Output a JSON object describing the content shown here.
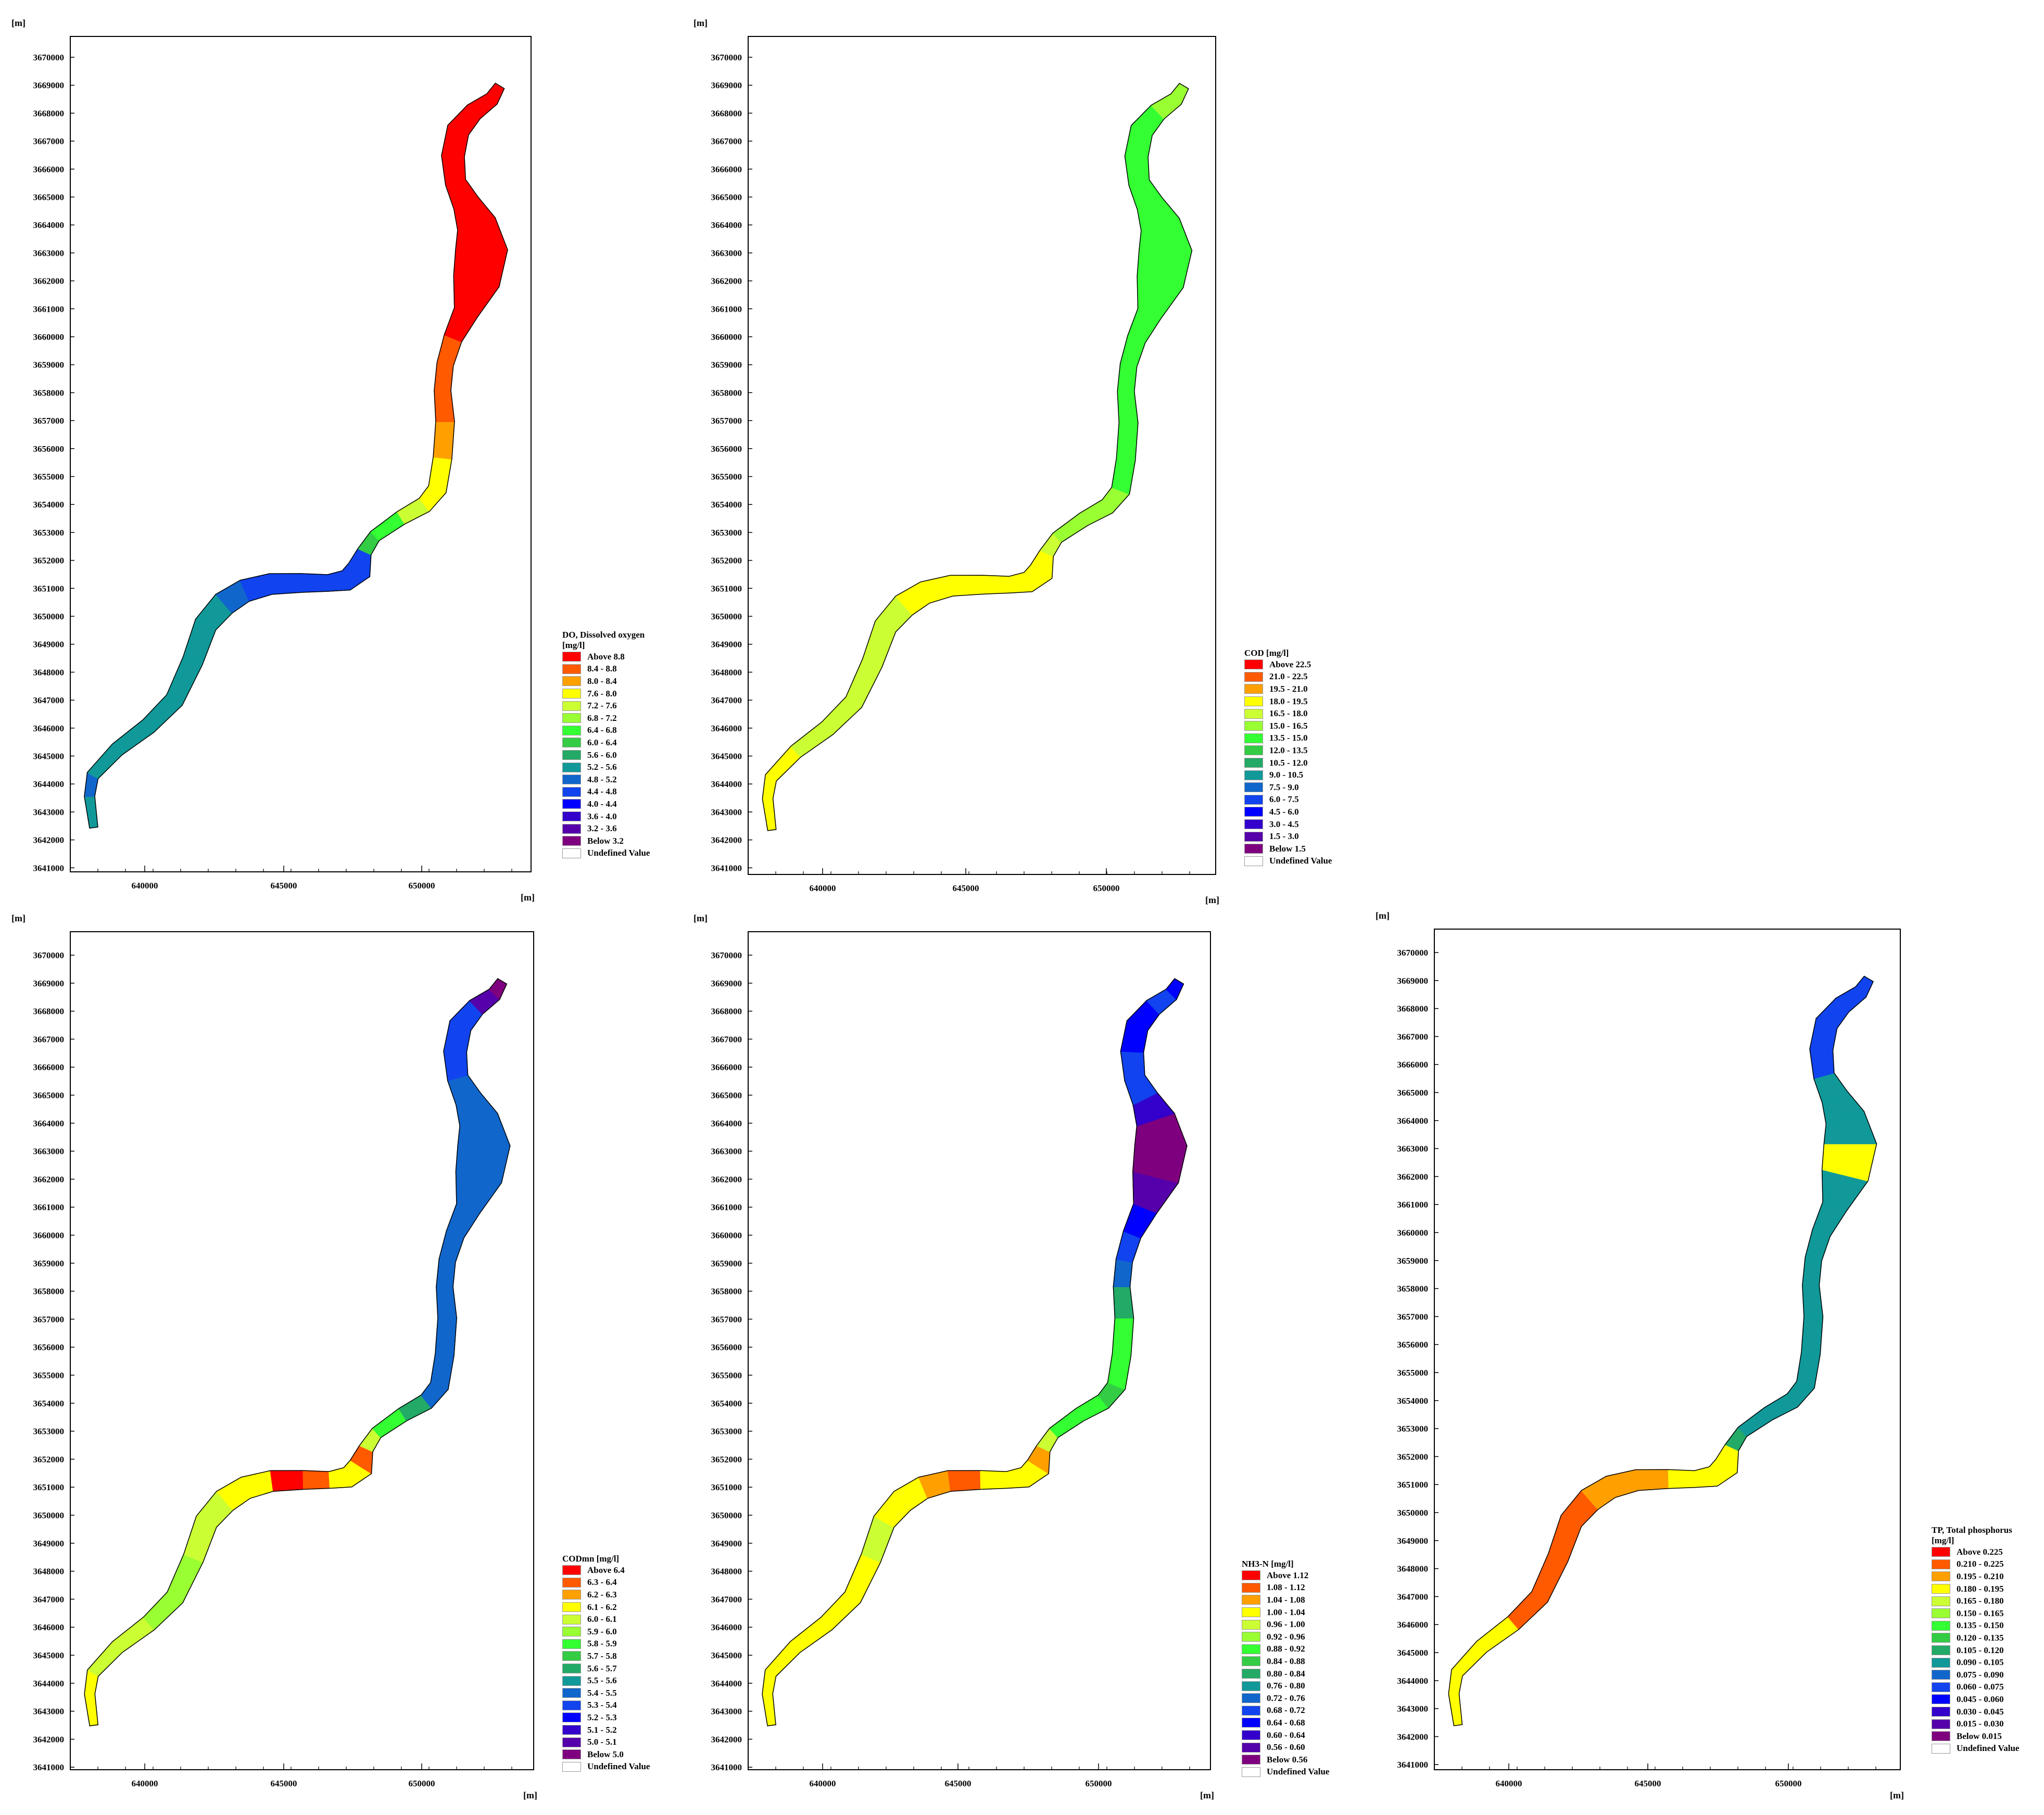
{
  "unit_label": "[m]",
  "axes": {
    "x_ticks": [
      "640000",
      "645000",
      "650000"
    ],
    "y_ticks": [
      "3670000",
      "3669000",
      "3668000",
      "3667000",
      "3666000",
      "3665000",
      "3664000",
      "3663000",
      "3662000",
      "3661000",
      "3660000",
      "3659000",
      "3658000",
      "3657000",
      "3656000",
      "3655000",
      "3654000",
      "3653000",
      "3652000",
      "3651000",
      "3650000",
      "3649000",
      "3648000",
      "3647000",
      "3646000",
      "3645000",
      "3644000",
      "3643000",
      "3642000",
      "3641000"
    ]
  },
  "panels": [
    {
      "id": "do",
      "legend_title": "DO, Dissolved oxygen\n[mg/l]",
      "legend": [
        {
          "label": "Above 8.8",
          "color": "#ff0000"
        },
        {
          "label": "8.4 - 8.8",
          "color": "#ff5a00"
        },
        {
          "label": "8.0 - 8.4",
          "color": "#ffa000"
        },
        {
          "label": "7.6 - 8.0",
          "color": "#ffff00"
        },
        {
          "label": "7.2 - 7.6",
          "color": "#ccff33"
        },
        {
          "label": "6.8 - 7.2",
          "color": "#99ff33"
        },
        {
          "label": "6.4 - 6.8",
          "color": "#33ff33"
        },
        {
          "label": "6.0 - 6.4",
          "color": "#33cc44"
        },
        {
          "label": "5.6 - 6.0",
          "color": "#22aa66"
        },
        {
          "label": "5.2 - 5.6",
          "color": "#119999"
        },
        {
          "label": "4.8 - 5.2",
          "color": "#1166cc"
        },
        {
          "label": "4.4 - 4.8",
          "color": "#1144ee"
        },
        {
          "label": "4.0 - 4.4",
          "color": "#0000ff"
        },
        {
          "label": "3.6 - 4.0",
          "color": "#3300cc"
        },
        {
          "label": "3.2 - 3.6",
          "color": "#5500aa"
        },
        {
          "label": "Below 3.2",
          "color": "#7f007f"
        },
        {
          "label": "Undefined Value",
          "color": "#ffffff"
        }
      ]
    },
    {
      "id": "cod",
      "legend_title": "COD [mg/l]",
      "legend": [
        {
          "label": "Above 22.5",
          "color": "#ff0000"
        },
        {
          "label": "21.0 - 22.5",
          "color": "#ff5a00"
        },
        {
          "label": "19.5 - 21.0",
          "color": "#ffa000"
        },
        {
          "label": "18.0 - 19.5",
          "color": "#ffff00"
        },
        {
          "label": "16.5 - 18.0",
          "color": "#ccff33"
        },
        {
          "label": "15.0 - 16.5",
          "color": "#99ff33"
        },
        {
          "label": "13.5 - 15.0",
          "color": "#33ff33"
        },
        {
          "label": "12.0 - 13.5",
          "color": "#33cc44"
        },
        {
          "label": "10.5 - 12.0",
          "color": "#22aa66"
        },
        {
          "label": "9.0 - 10.5",
          "color": "#119999"
        },
        {
          "label": "7.5 - 9.0",
          "color": "#1166cc"
        },
        {
          "label": "6.0 - 7.5",
          "color": "#1144ee"
        },
        {
          "label": "4.5 - 6.0",
          "color": "#0000ff"
        },
        {
          "label": "3.0 - 4.5",
          "color": "#3300cc"
        },
        {
          "label": "1.5 - 3.0",
          "color": "#5500aa"
        },
        {
          "label": "Below 1.5",
          "color": "#7f007f"
        },
        {
          "label": "Undefined Value",
          "color": "#ffffff"
        }
      ]
    },
    {
      "id": "codmn",
      "legend_title": "CODmn [mg/l]",
      "legend": [
        {
          "label": "Above 6.4",
          "color": "#ff0000"
        },
        {
          "label": "6.3 - 6.4",
          "color": "#ff5a00"
        },
        {
          "label": "6.2 - 6.3",
          "color": "#ffa000"
        },
        {
          "label": "6.1 - 6.2",
          "color": "#ffff00"
        },
        {
          "label": "6.0 - 6.1",
          "color": "#ccff33"
        },
        {
          "label": "5.9 - 6.0",
          "color": "#99ff33"
        },
        {
          "label": "5.8 - 5.9",
          "color": "#33ff33"
        },
        {
          "label": "5.7 - 5.8",
          "color": "#33cc44"
        },
        {
          "label": "5.6 - 5.7",
          "color": "#22aa66"
        },
        {
          "label": "5.5 - 5.6",
          "color": "#119999"
        },
        {
          "label": "5.4 - 5.5",
          "color": "#1166cc"
        },
        {
          "label": "5.3 - 5.4",
          "color": "#1144ee"
        },
        {
          "label": "5.2 - 5.3",
          "color": "#0000ff"
        },
        {
          "label": "5.1 - 5.2",
          "color": "#3300cc"
        },
        {
          "label": "5.0 - 5.1",
          "color": "#5500aa"
        },
        {
          "label": "Below 5.0",
          "color": "#7f007f"
        },
        {
          "label": "Undefined Value",
          "color": "#ffffff"
        }
      ]
    },
    {
      "id": "nh3n",
      "legend_title": "NH3-N [mg/l]",
      "legend": [
        {
          "label": "Above 1.12",
          "color": "#ff0000"
        },
        {
          "label": "1.08 - 1.12",
          "color": "#ff5a00"
        },
        {
          "label": "1.04 - 1.08",
          "color": "#ffa000"
        },
        {
          "label": "1.00 - 1.04",
          "color": "#ffff00"
        },
        {
          "label": "0.96 - 1.00",
          "color": "#ccff33"
        },
        {
          "label": "0.92 - 0.96",
          "color": "#99ff33"
        },
        {
          "label": "0.88 - 0.92",
          "color": "#33ff33"
        },
        {
          "label": "0.84 - 0.88",
          "color": "#33cc44"
        },
        {
          "label": "0.80 - 0.84",
          "color": "#22aa66"
        },
        {
          "label": "0.76 - 0.80",
          "color": "#119999"
        },
        {
          "label": "0.72 - 0.76",
          "color": "#1166cc"
        },
        {
          "label": "0.68 - 0.72",
          "color": "#1144ee"
        },
        {
          "label": "0.64 - 0.68",
          "color": "#0000ff"
        },
        {
          "label": "0.60 - 0.64",
          "color": "#3300cc"
        },
        {
          "label": "0.56 - 0.60",
          "color": "#5500aa"
        },
        {
          "label": "Below 0.56",
          "color": "#7f007f"
        },
        {
          "label": "Undefined Value",
          "color": "#ffffff"
        }
      ]
    },
    {
      "id": "tp",
      "legend_title": "TP, Total phosphorus\n[mg/l]",
      "legend": [
        {
          "label": "Above 0.225",
          "color": "#ff0000"
        },
        {
          "label": "0.210 - 0.225",
          "color": "#ff5a00"
        },
        {
          "label": "0.195 - 0.210",
          "color": "#ffa000"
        },
        {
          "label": "0.180 - 0.195",
          "color": "#ffff00"
        },
        {
          "label": "0.165 - 0.180",
          "color": "#ccff33"
        },
        {
          "label": "0.150 - 0.165",
          "color": "#99ff33"
        },
        {
          "label": "0.135 - 0.150",
          "color": "#33ff33"
        },
        {
          "label": "0.120 - 0.135",
          "color": "#33cc44"
        },
        {
          "label": "0.105 - 0.120",
          "color": "#22aa66"
        },
        {
          "label": "0.090 - 0.105",
          "color": "#119999"
        },
        {
          "label": "0.075 - 0.090",
          "color": "#1166cc"
        },
        {
          "label": "0.060 - 0.075",
          "color": "#1144ee"
        },
        {
          "label": "0.045 - 0.060",
          "color": "#0000ff"
        },
        {
          "label": "0.030 - 0.045",
          "color": "#3300cc"
        },
        {
          "label": "0.015 - 0.030",
          "color": "#5500aa"
        },
        {
          "label": "Below 0.015",
          "color": "#7f007f"
        },
        {
          "label": "Undefined Value",
          "color": "#ffffff"
        }
      ]
    }
  ]
}
